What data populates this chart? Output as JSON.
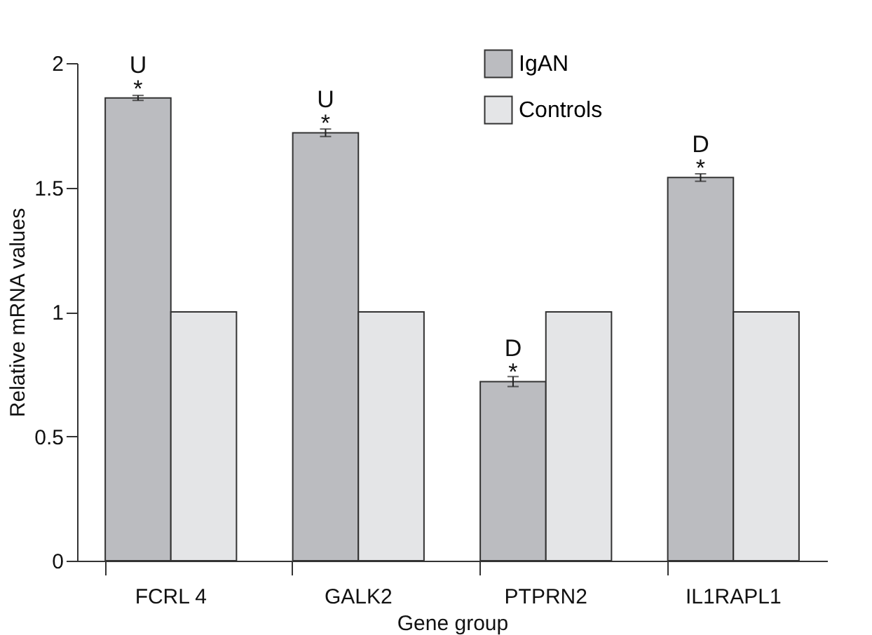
{
  "chart_data": {
    "type": "bar",
    "xlabel": "Gene group",
    "ylabel": "Relative mRNA values",
    "categories": [
      "FCRL 4",
      "GALK2",
      "PTPRN2",
      "IL1RAPL1"
    ],
    "series": [
      {
        "name": "IgAN",
        "color": "#bbbcc0",
        "values": [
          1.86,
          1.72,
          0.72,
          1.54
        ],
        "errors": [
          0.01,
          0.015,
          0.02,
          0.015
        ]
      },
      {
        "name": "Controls",
        "color": "#e4e5e7",
        "values": [
          1,
          1,
          1,
          1
        ]
      }
    ],
    "ylim": [
      0,
      2
    ],
    "yticks": [
      0,
      0.5,
      1,
      1.5,
      2
    ],
    "grid": false,
    "legend": "top right",
    "annotations": [
      {
        "text": "U\n*",
        "x": "FCRL 4",
        "y": 1.86
      },
      {
        "text": "U\n*",
        "x": "GALK2",
        "y": 1.72
      },
      {
        "text": "D\n*",
        "x": "PTPRN2",
        "y": 0.72
      },
      {
        "text": "D\n*",
        "x": "IL1RAPL1",
        "y": 1.54
      }
    ]
  }
}
